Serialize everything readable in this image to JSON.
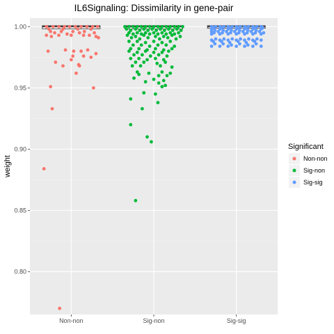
{
  "chart_data": {
    "type": "scatter",
    "title": "IL6Signaling: Dissimilarity in gene-pair",
    "xlabel": "",
    "ylabel": "weight",
    "categories": [
      "Non-non",
      "Sig-non",
      "Sig-sig"
    ],
    "ylim": [
      0.765,
      1.007
    ],
    "yticks": [
      "0.80",
      "0.85",
      "0.90",
      "0.95",
      "1.00"
    ],
    "grid": true,
    "legend": {
      "title": "Significant",
      "position": "right",
      "entries": [
        "Non-non",
        "Sig-non",
        "Sig-sig"
      ]
    },
    "boxplots": [
      {
        "category": "Non-non",
        "q1": 0.999,
        "median": 1.0,
        "q3": 1.0
      },
      {
        "category": "Sig-non",
        "q1": 0.999,
        "median": 1.0,
        "q3": 1.0
      },
      {
        "category": "Sig-sig",
        "q1": 0.9995,
        "median": 1.0,
        "q3": 1.0
      }
    ],
    "series": [
      {
        "name": "Non-non",
        "color": "#F8766D",
        "points": [
          [
            -0.3,
            1.0
          ],
          [
            -0.22,
            1.0
          ],
          [
            -0.15,
            1.0
          ],
          [
            -0.08,
            1.0
          ],
          [
            -0.02,
            1.0
          ],
          [
            0.05,
            1.0
          ],
          [
            0.12,
            1.0
          ],
          [
            0.19,
            1.0
          ],
          [
            0.26,
            1.0
          ],
          [
            0.32,
            1.0
          ],
          [
            -0.27,
            0.998
          ],
          [
            -0.1,
            0.998
          ],
          [
            0.08,
            0.998
          ],
          [
            0.24,
            0.998
          ],
          [
            -0.25,
            0.996
          ],
          [
            -0.12,
            0.996
          ],
          [
            0.02,
            0.996
          ],
          [
            0.16,
            0.996
          ],
          [
            -0.2,
            0.995
          ],
          [
            -0.05,
            0.994
          ],
          [
            0.1,
            0.995
          ],
          [
            0.28,
            0.995
          ],
          [
            -0.3,
            0.993
          ],
          [
            -0.15,
            0.993
          ],
          [
            0.0,
            0.993
          ],
          [
            0.15,
            0.993
          ],
          [
            0.22,
            0.993
          ],
          [
            -0.24,
            0.992
          ],
          [
            0.3,
            0.992
          ],
          [
            0.33,
            0.991
          ],
          [
            -0.07,
            0.981
          ],
          [
            -0.28,
            0.98
          ],
          [
            0.03,
            0.98
          ],
          [
            0.12,
            0.98
          ],
          [
            0.2,
            0.981
          ],
          [
            0.3,
            0.978
          ],
          [
            0.02,
            0.976
          ],
          [
            0.15,
            0.976
          ],
          [
            0.24,
            0.975
          ],
          [
            0.0,
            0.973
          ],
          [
            -0.19,
            0.971
          ],
          [
            0.09,
            0.969
          ],
          [
            -0.1,
            0.968
          ],
          [
            0.1,
            0.968
          ],
          [
            0.06,
            0.962
          ],
          [
            -0.25,
            0.951
          ],
          [
            0.27,
            0.95
          ],
          [
            -0.23,
            0.933
          ],
          [
            -0.33,
            0.884
          ],
          [
            -0.14,
            0.77
          ]
        ]
      },
      {
        "name": "Sig-non",
        "color": "#00BA38",
        "points": [
          [
            -0.35,
            1.0
          ],
          [
            -0.3,
            1.0
          ],
          [
            -0.25,
            1.0
          ],
          [
            -0.2,
            1.0
          ],
          [
            -0.15,
            1.0
          ],
          [
            -0.1,
            1.0
          ],
          [
            -0.05,
            1.0
          ],
          [
            0.0,
            1.0
          ],
          [
            0.05,
            1.0
          ],
          [
            0.1,
            1.0
          ],
          [
            0.15,
            1.0
          ],
          [
            0.2,
            1.0
          ],
          [
            0.25,
            1.0
          ],
          [
            0.3,
            1.0
          ],
          [
            0.35,
            1.0
          ],
          [
            -0.33,
            0.998
          ],
          [
            -0.22,
            0.998
          ],
          [
            -0.12,
            0.998
          ],
          [
            -0.02,
            0.998
          ],
          [
            0.08,
            0.998
          ],
          [
            0.18,
            0.998
          ],
          [
            0.28,
            0.998
          ],
          [
            -0.28,
            0.997
          ],
          [
            -0.17,
            0.997
          ],
          [
            -0.07,
            0.997
          ],
          [
            0.03,
            0.997
          ],
          [
            0.13,
            0.997
          ],
          [
            0.23,
            0.997
          ],
          [
            0.33,
            0.997
          ],
          [
            -0.3,
            0.995
          ],
          [
            -0.2,
            0.995
          ],
          [
            -0.1,
            0.995
          ],
          [
            0.0,
            0.995
          ],
          [
            0.1,
            0.995
          ],
          [
            0.2,
            0.995
          ],
          [
            0.3,
            0.995
          ],
          [
            -0.25,
            0.994
          ],
          [
            -0.15,
            0.994
          ],
          [
            -0.05,
            0.994
          ],
          [
            0.05,
            0.994
          ],
          [
            0.15,
            0.994
          ],
          [
            0.25,
            0.994
          ],
          [
            -0.32,
            0.993
          ],
          [
            -0.22,
            0.992
          ],
          [
            -0.12,
            0.993
          ],
          [
            0.02,
            0.992
          ],
          [
            0.12,
            0.992
          ],
          [
            0.22,
            0.993
          ],
          [
            0.32,
            0.992
          ],
          [
            -0.27,
            0.991
          ],
          [
            -0.17,
            0.99
          ],
          [
            -0.07,
            0.991
          ],
          [
            0.07,
            0.99
          ],
          [
            0.17,
            0.991
          ],
          [
            0.27,
            0.99
          ],
          [
            -0.3,
            0.988
          ],
          [
            -0.2,
            0.988
          ],
          [
            -0.1,
            0.987
          ],
          [
            0.0,
            0.988
          ],
          [
            0.1,
            0.987
          ],
          [
            0.2,
            0.988
          ],
          [
            -0.25,
            0.985
          ],
          [
            -0.15,
            0.985
          ],
          [
            -0.05,
            0.984
          ],
          [
            0.05,
            0.985
          ],
          [
            0.15,
            0.985
          ],
          [
            0.25,
            0.984
          ],
          [
            -0.28,
            0.982
          ],
          [
            -0.18,
            0.982
          ],
          [
            -0.08,
            0.981
          ],
          [
            0.02,
            0.982
          ],
          [
            0.12,
            0.981
          ],
          [
            0.22,
            0.982
          ],
          [
            -0.3,
            0.98
          ],
          [
            -0.2,
            0.979
          ],
          [
            -0.1,
            0.98
          ],
          [
            0.0,
            0.979
          ],
          [
            0.1,
            0.979
          ],
          [
            0.18,
            0.98
          ],
          [
            -0.24,
            0.977
          ],
          [
            -0.14,
            0.977
          ],
          [
            -0.04,
            0.976
          ],
          [
            0.06,
            0.977
          ],
          [
            0.16,
            0.976
          ],
          [
            -0.28,
            0.974
          ],
          [
            -0.18,
            0.974
          ],
          [
            -0.08,
            0.973
          ],
          [
            0.02,
            0.974
          ],
          [
            0.12,
            0.973
          ],
          [
            -0.22,
            0.971
          ],
          [
            -0.12,
            0.971
          ],
          [
            0.04,
            0.97
          ],
          [
            0.14,
            0.971
          ],
          [
            -0.26,
            0.968
          ],
          [
            -0.16,
            0.968
          ],
          [
            0.08,
            0.968
          ],
          [
            0.22,
            0.967
          ],
          [
            -0.2,
            0.963
          ],
          [
            -0.06,
            0.962
          ],
          [
            0.1,
            0.963
          ],
          [
            0.2,
            0.962
          ],
          [
            -0.18,
            0.961
          ],
          [
            0.06,
            0.96
          ],
          [
            0.16,
            0.96
          ],
          [
            -0.24,
            0.958
          ],
          [
            0.0,
            0.957
          ],
          [
            0.12,
            0.956
          ],
          [
            -0.1,
            0.955
          ],
          [
            0.06,
            0.954
          ],
          [
            0.14,
            0.952
          ],
          [
            0.1,
            0.951
          ],
          [
            -0.12,
            0.946
          ],
          [
            0.02,
            0.945
          ],
          [
            -0.28,
            0.941
          ],
          [
            0.05,
            0.938
          ],
          [
            -0.14,
            0.933
          ],
          [
            -0.28,
            0.92
          ],
          [
            -0.08,
            0.91
          ],
          [
            -0.03,
            0.906
          ],
          [
            -0.22,
            0.858
          ]
        ]
      },
      {
        "name": "Sig-sig",
        "color": "#619CFF",
        "points": [
          [
            -0.3,
            1.0
          ],
          [
            -0.25,
            1.0
          ],
          [
            -0.2,
            1.0
          ],
          [
            -0.15,
            1.0
          ],
          [
            -0.1,
            1.0
          ],
          [
            -0.05,
            1.0
          ],
          [
            0.0,
            1.0
          ],
          [
            0.05,
            1.0
          ],
          [
            0.1,
            1.0
          ],
          [
            0.15,
            1.0
          ],
          [
            0.2,
            1.0
          ],
          [
            0.25,
            1.0
          ],
          [
            0.3,
            1.0
          ],
          [
            -0.28,
            0.999
          ],
          [
            -0.18,
            0.999
          ],
          [
            -0.08,
            0.999
          ],
          [
            0.02,
            0.999
          ],
          [
            0.12,
            0.999
          ],
          [
            0.22,
            0.999
          ],
          [
            0.32,
            0.999
          ],
          [
            -0.3,
            0.998
          ],
          [
            -0.2,
            0.998
          ],
          [
            -0.1,
            0.998
          ],
          [
            0.0,
            0.998
          ],
          [
            0.1,
            0.998
          ],
          [
            0.2,
            0.998
          ],
          [
            0.3,
            0.998
          ],
          [
            -0.26,
            0.997
          ],
          [
            -0.16,
            0.997
          ],
          [
            -0.06,
            0.997
          ],
          [
            0.04,
            0.997
          ],
          [
            0.14,
            0.997
          ],
          [
            0.24,
            0.997
          ],
          [
            -0.3,
            0.996
          ],
          [
            -0.22,
            0.996
          ],
          [
            -0.12,
            0.996
          ],
          [
            -0.02,
            0.996
          ],
          [
            0.08,
            0.996
          ],
          [
            0.18,
            0.996
          ],
          [
            0.28,
            0.996
          ],
          [
            -0.27,
            0.995
          ],
          [
            -0.17,
            0.995
          ],
          [
            -0.07,
            0.995
          ],
          [
            0.03,
            0.995
          ],
          [
            0.13,
            0.995
          ],
          [
            0.23,
            0.995
          ],
          [
            0.33,
            0.995
          ],
          [
            -0.3,
            0.994
          ],
          [
            -0.2,
            0.994
          ],
          [
            -0.1,
            0.994
          ],
          [
            0.0,
            0.994
          ],
          [
            0.1,
            0.994
          ],
          [
            0.2,
            0.994
          ],
          [
            0.3,
            0.994
          ],
          [
            -0.25,
            0.99
          ],
          [
            -0.15,
            0.99
          ],
          [
            -0.05,
            0.99
          ],
          [
            0.05,
            0.99
          ],
          [
            0.15,
            0.99
          ],
          [
            0.25,
            0.99
          ],
          [
            -0.3,
            0.989
          ],
          [
            -0.2,
            0.989
          ],
          [
            -0.1,
            0.989
          ],
          [
            0.0,
            0.989
          ],
          [
            0.1,
            0.989
          ],
          [
            0.2,
            0.989
          ],
          [
            0.3,
            0.989
          ],
          [
            -0.28,
            0.988
          ],
          [
            -0.18,
            0.988
          ],
          [
            -0.08,
            0.987
          ],
          [
            0.02,
            0.988
          ],
          [
            0.12,
            0.987
          ],
          [
            0.22,
            0.988
          ],
          [
            -0.26,
            0.986
          ],
          [
            -0.16,
            0.986
          ],
          [
            -0.06,
            0.985
          ],
          [
            0.04,
            0.986
          ],
          [
            0.14,
            0.985
          ],
          [
            0.24,
            0.986
          ],
          [
            -0.3,
            0.984
          ],
          [
            -0.2,
            0.984
          ],
          [
            -0.1,
            0.984
          ],
          [
            0.0,
            0.984
          ],
          [
            0.1,
            0.984
          ],
          [
            0.2,
            0.984
          ],
          [
            0.3,
            0.984
          ]
        ]
      }
    ]
  }
}
